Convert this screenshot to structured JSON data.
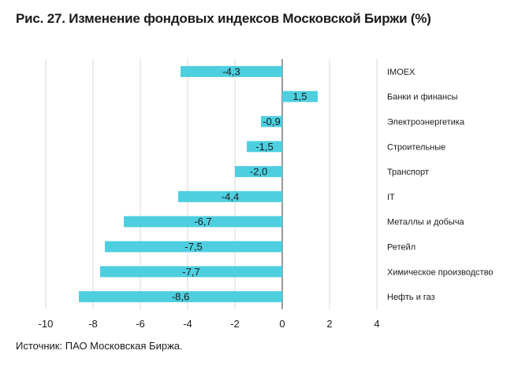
{
  "title": "Рис. 27. Изменение фондовых индексов Московской Биржи (%)",
  "source": "Источник: ПАО Московская Биржа.",
  "colors": {
    "bar": "#4ecfe0",
    "grid": "#d9d9d9",
    "axis": "#333333"
  },
  "chart_data": {
    "type": "bar",
    "orientation": "horizontal",
    "title": "Рис. 27. Изменение фондовых индексов Московской Биржи (%)",
    "categories": [
      "IMOEX",
      "Банки и финансы",
      "Электроэнергетика",
      "Строительные",
      "Транспорт",
      "IT",
      "Металлы и добыча",
      "Ретейл",
      "Химическое производство",
      "Нефть и газ"
    ],
    "values": [
      -4.3,
      1.5,
      -0.9,
      -1.5,
      -2.0,
      -4.4,
      -6.7,
      -7.5,
      -7.7,
      -8.6
    ],
    "value_labels": [
      "-4,3",
      "1,5",
      "-0,9",
      "-1,5",
      "-2,0",
      "-4,4",
      "-6,7",
      "-7,5",
      "-7,7",
      "-8,6"
    ],
    "xlim": [
      -10,
      4
    ],
    "x_ticks": [
      -10,
      -8,
      -6,
      -4,
      -2,
      0,
      2,
      4
    ],
    "grid": true,
    "legend": "none"
  }
}
